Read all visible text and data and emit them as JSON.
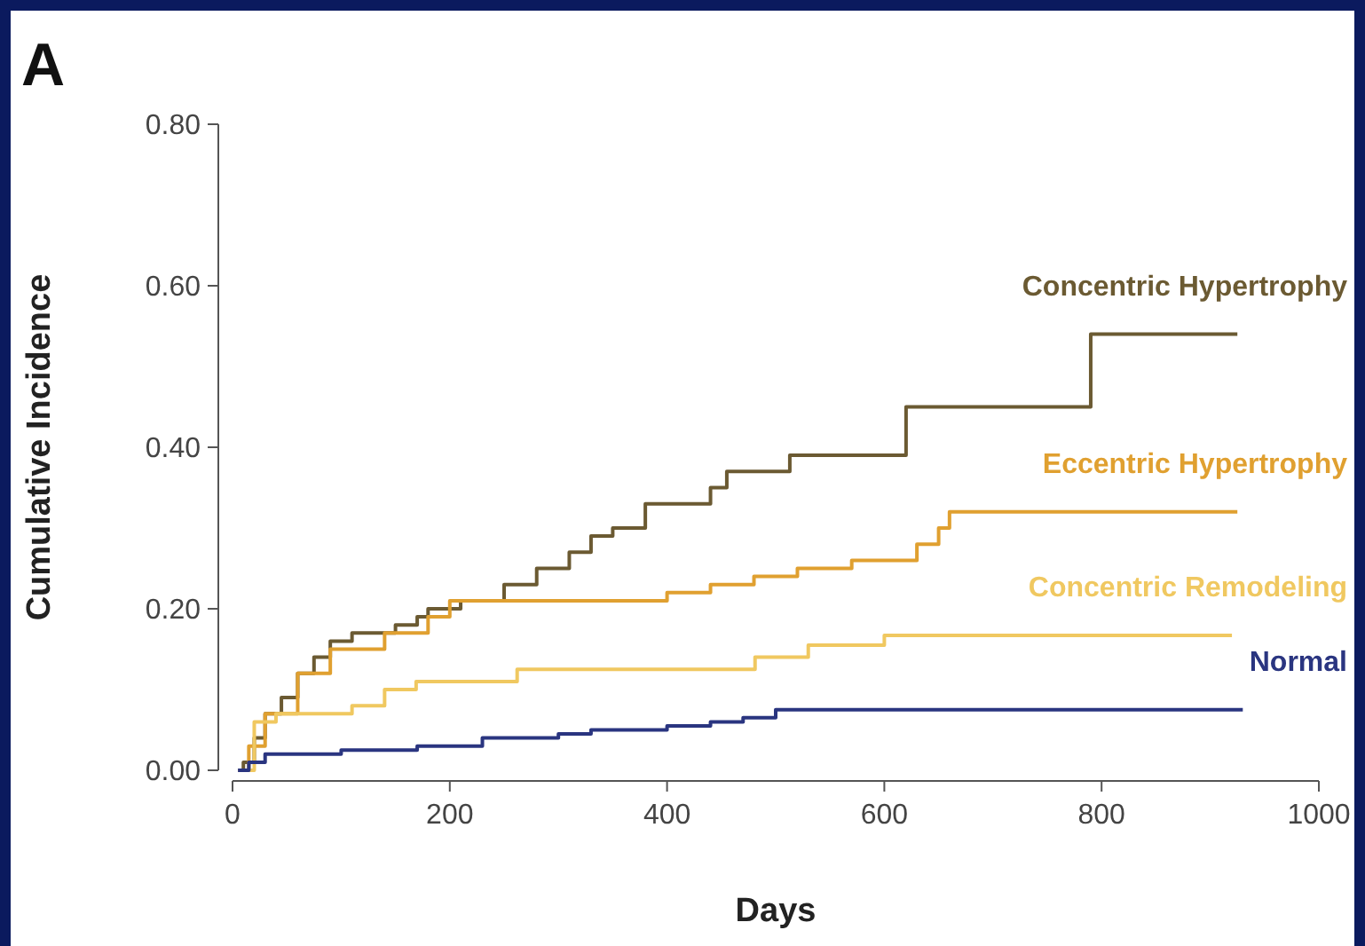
{
  "chart_data": {
    "type": "step",
    "xlabel": "Days",
    "ylabel": "Cumulative Incidence",
    "annotations": [
      "A"
    ],
    "xlim": [
      0,
      1000
    ],
    "xticks": [
      0,
      200,
      400,
      600,
      800,
      1000
    ],
    "ylim": [
      0,
      0.8
    ],
    "yticks": [
      {
        "value": 0,
        "label": "0.00"
      },
      {
        "value": 0.2,
        "label": "0.20"
      },
      {
        "value": 0.4,
        "label": "0.40"
      },
      {
        "value": 0.6,
        "label": "0.60"
      },
      {
        "value": 0.8,
        "label": "0.80"
      }
    ],
    "grid": false,
    "line_style": "solid",
    "marker": "none",
    "series": [
      {
        "name": "Concentric Hypertrophy",
        "color": "#6b5a32",
        "x": [
          5,
          10,
          20,
          30,
          45,
          60,
          75,
          90,
          110,
          150,
          170,
          180,
          210,
          250,
          280,
          310,
          330,
          350,
          380,
          440,
          455,
          513,
          620,
          790,
          925
        ],
        "values": [
          0,
          0.01,
          0.04,
          0.07,
          0.09,
          0.12,
          0.14,
          0.16,
          0.17,
          0.18,
          0.19,
          0.2,
          0.21,
          0.23,
          0.25,
          0.27,
          0.29,
          0.3,
          0.33,
          0.35,
          0.37,
          0.39,
          0.45,
          0.54,
          0.54
        ]
      },
      {
        "name": "Eccentric Hypertrophy",
        "color": "#e0a030",
        "x": [
          5,
          15,
          30,
          60,
          90,
          140,
          180,
          200,
          380,
          400,
          440,
          480,
          520,
          570,
          630,
          650,
          660,
          925
        ],
        "values": [
          0,
          0.03,
          0.07,
          0.12,
          0.15,
          0.17,
          0.19,
          0.21,
          0.21,
          0.22,
          0.23,
          0.24,
          0.25,
          0.26,
          0.28,
          0.3,
          0.32,
          0.32
        ]
      },
      {
        "name": "Concentric Remodeling",
        "color": "#f0c860",
        "x": [
          5,
          20,
          40,
          110,
          140,
          169,
          262,
          481,
          530,
          600,
          920
        ],
        "values": [
          0,
          0.06,
          0.07,
          0.08,
          0.1,
          0.11,
          0.125,
          0.14,
          0.155,
          0.167,
          0.167
        ]
      },
      {
        "name": "Normal",
        "color": "#2a3580",
        "x": [
          5,
          15,
          30,
          100,
          170,
          230,
          300,
          330,
          400,
          440,
          470,
          500,
          930
        ],
        "values": [
          0,
          0.01,
          0.02,
          0.025,
          0.03,
          0.04,
          0.045,
          0.05,
          0.055,
          0.06,
          0.065,
          0.075,
          0.075
        ]
      }
    ]
  }
}
